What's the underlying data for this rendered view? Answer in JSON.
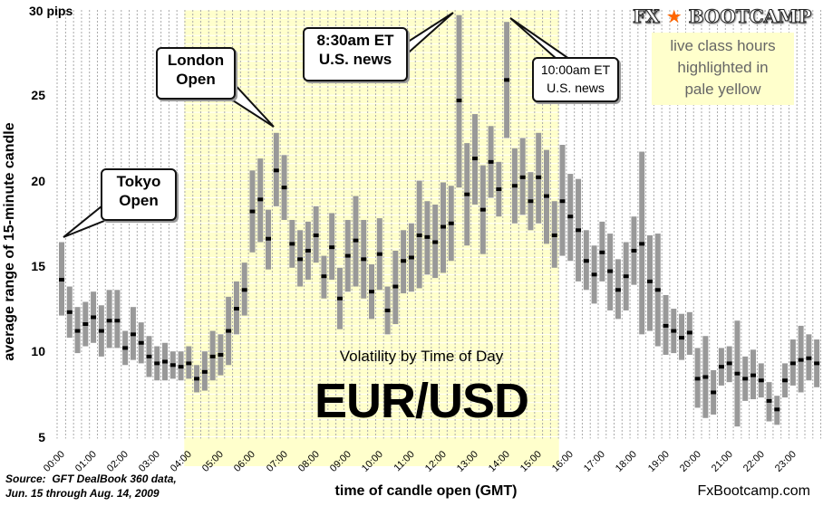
{
  "chart_data": {
    "type": "candlestick-range",
    "title": "Volatility by Time of Day",
    "subtitle": "EUR/USD",
    "xlabel": "time of candle open (GMT)",
    "ylabel": "average range of 15-minute candle",
    "y_unit_label": "30 pips",
    "ylim": [
      5,
      30
    ],
    "y_ticks": [
      "5",
      "10",
      "15",
      "20",
      "25",
      "30"
    ],
    "x_tick_labels": [
      "00:00",
      "01:00",
      "02:00",
      "03:00",
      "04:00",
      "05:00",
      "06:00",
      "07:00",
      "08:00",
      "09:00",
      "10:00",
      "11:00",
      "12:00",
      "13:00",
      "14:00",
      "15:00",
      "16:00",
      "17:00",
      "18:00",
      "19:00",
      "20:00",
      "21:00",
      "22:00",
      "23:00"
    ],
    "interval_minutes": 15,
    "highlight_candles": [
      16,
      62
    ],
    "series_fields": [
      "low",
      "mid",
      "high"
    ],
    "candles": [
      [
        12.1,
        14.2,
        16.4
      ],
      [
        10.8,
        12.3,
        13.8
      ],
      [
        9.9,
        11.2,
        12.6
      ],
      [
        10.3,
        11.6,
        12.9
      ],
      [
        10.5,
        12.0,
        13.5
      ],
      [
        9.7,
        11.2,
        12.7
      ],
      [
        10.2,
        11.8,
        13.6
      ],
      [
        10.2,
        11.8,
        13.6
      ],
      [
        9.2,
        10.2,
        11.2
      ],
      [
        9.5,
        11.0,
        12.6
      ],
      [
        9.3,
        10.5,
        11.7
      ],
      [
        8.5,
        9.7,
        10.9
      ],
      [
        8.3,
        9.3,
        10.3
      ],
      [
        8.3,
        9.4,
        10.5
      ],
      [
        8.4,
        9.2,
        10.0
      ],
      [
        8.3,
        9.1,
        10.0
      ],
      [
        8.4,
        9.3,
        10.3
      ],
      [
        7.6,
        8.4,
        9.2
      ],
      [
        7.7,
        8.8,
        10.0
      ],
      [
        8.3,
        9.7,
        11.2
      ],
      [
        8.6,
        9.8,
        11.0
      ],
      [
        9.2,
        11.2,
        13.2
      ],
      [
        11.0,
        12.5,
        14.1
      ],
      [
        12.1,
        13.6,
        15.2
      ],
      [
        15.8,
        18.2,
        20.6
      ],
      [
        16.4,
        18.9,
        21.3
      ],
      [
        14.8,
        16.6,
        18.3
      ],
      [
        18.5,
        20.6,
        22.8
      ],
      [
        17.7,
        19.6,
        21.5
      ],
      [
        14.9,
        16.3,
        17.7
      ],
      [
        13.8,
        15.4,
        17.1
      ],
      [
        14.2,
        15.9,
        17.6
      ],
      [
        15.2,
        16.8,
        18.5
      ],
      [
        13.1,
        14.4,
        15.6
      ],
      [
        14.2,
        16.1,
        18.1
      ],
      [
        11.3,
        13.1,
        14.9
      ],
      [
        13.5,
        15.6,
        17.7
      ],
      [
        13.8,
        16.5,
        19.1
      ],
      [
        13.1,
        15.4,
        17.7
      ],
      [
        11.9,
        13.5,
        15.1
      ],
      [
        13.6,
        15.7,
        17.8
      ],
      [
        11.0,
        12.4,
        13.8
      ],
      [
        11.6,
        13.8,
        15.9
      ],
      [
        13.4,
        15.3,
        17.1
      ],
      [
        13.5,
        15.5,
        17.5
      ],
      [
        13.7,
        16.8,
        20.0
      ],
      [
        14.5,
        16.7,
        18.8
      ],
      [
        14.3,
        16.4,
        18.6
      ],
      [
        14.6,
        17.3,
        19.9
      ],
      [
        15.3,
        17.5,
        19.7
      ],
      [
        19.6,
        24.7,
        29.7
      ],
      [
        16.2,
        19.2,
        22.2
      ],
      [
        18.6,
        21.3,
        23.9
      ],
      [
        15.7,
        18.3,
        20.9
      ],
      [
        19.0,
        21.1,
        23.2
      ],
      [
        17.9,
        19.5,
        21.1
      ],
      [
        22.5,
        25.9,
        29.3
      ],
      [
        17.5,
        19.7,
        21.9
      ],
      [
        18.0,
        20.2,
        22.5
      ],
      [
        17.1,
        18.8,
        20.5
      ],
      [
        17.5,
        20.2,
        22.8
      ],
      [
        16.3,
        19.1,
        21.8
      ],
      [
        14.9,
        16.8,
        18.8
      ],
      [
        15.6,
        18.8,
        22.1
      ],
      [
        15.3,
        17.9,
        20.4
      ],
      [
        14.1,
        17.1,
        20.1
      ],
      [
        13.6,
        15.3,
        17.1
      ],
      [
        12.8,
        14.5,
        16.2
      ],
      [
        14.1,
        15.8,
        17.6
      ],
      [
        12.4,
        14.7,
        16.9
      ],
      [
        11.9,
        13.6,
        15.4
      ],
      [
        12.4,
        14.4,
        16.4
      ],
      [
        13.9,
        15.9,
        17.9
      ],
      [
        11.0,
        16.3,
        21.7
      ],
      [
        11.2,
        14.1,
        16.8
      ],
      [
        10.3,
        13.6,
        16.9
      ],
      [
        9.8,
        11.5,
        13.3
      ],
      [
        9.9,
        11.2,
        12.5
      ],
      [
        9.5,
        10.8,
        12.2
      ],
      [
        9.8,
        11.1,
        12.3
      ],
      [
        6.7,
        8.4,
        10.2
      ],
      [
        6.1,
        8.5,
        10.9
      ],
      [
        6.3,
        7.6,
        8.9
      ],
      [
        8.0,
        9.1,
        10.2
      ],
      [
        8.2,
        9.3,
        10.3
      ],
      [
        5.6,
        8.7,
        11.8
      ],
      [
        7.1,
        8.4,
        9.7
      ],
      [
        7.2,
        8.6,
        10.1
      ],
      [
        7.3,
        8.3,
        9.3
      ],
      [
        5.9,
        7.1,
        8.2
      ],
      [
        5.7,
        6.6,
        7.4
      ],
      [
        7.3,
        8.3,
        9.3
      ],
      [
        8.0,
        9.3,
        10.7
      ],
      [
        7.6,
        9.5,
        11.5
      ],
      [
        8.3,
        9.6,
        11.0
      ],
      [
        7.9,
        9.3,
        10.7
      ]
    ],
    "annotations": [
      {
        "text_lines": [
          "Tokyo",
          "Open"
        ],
        "candle": 0
      },
      {
        "text_lines": [
          "London",
          "Open"
        ],
        "candle": 27
      },
      {
        "text_lines": [
          "8:30am ET",
          "U.S. news"
        ],
        "candle": 50
      },
      {
        "text_lines": [
          "10:00am ET",
          "U.S. news"
        ],
        "candle": 56
      }
    ],
    "grid": true
  },
  "legend_note": [
    "live class hours",
    "highlighted in",
    "pale yellow"
  ],
  "logo": {
    "text_left": "FX",
    "text_right": "BOOTCAMP"
  },
  "source": [
    "Source:  GFT DealBook 360 data,",
    "Jun. 15 through Aug. 14, 2009"
  ],
  "website": "FxBootcamp.com",
  "colors": {
    "highlight": "#ffffcc",
    "bar": "#999999",
    "mid": "#000000",
    "star": "#ff6600"
  }
}
